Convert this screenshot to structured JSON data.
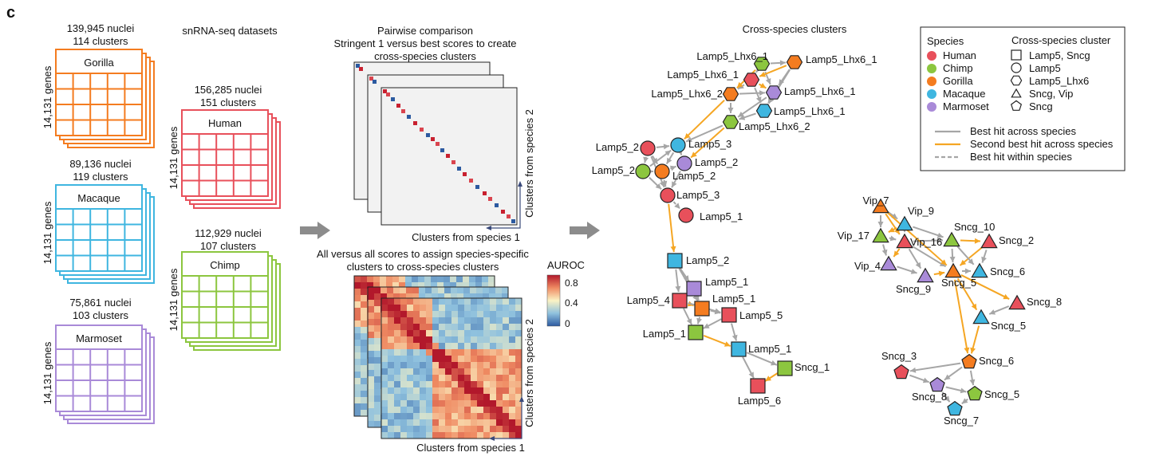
{
  "panel_label": "c",
  "datasets": {
    "heading": "snRNA-seq datasets",
    "species": [
      {
        "name": "Gorilla",
        "nuclei": "139,945 nuclei",
        "clusters": "114 clusters",
        "genes": "14,131 genes",
        "color": "#f47c20"
      },
      {
        "name": "Human",
        "nuclei": "156,285 nuclei",
        "clusters": "151 clusters",
        "genes": "14,131 genes",
        "color": "#e8505b"
      },
      {
        "name": "Macaque",
        "nuclei": "89,136 nuclei",
        "clusters": "119 clusters",
        "genes": "14,131 genes",
        "color": "#3fb6e0"
      },
      {
        "name": "Chimp",
        "nuclei": "112,929 nuclei",
        "clusters": "107 clusters",
        "genes": "14,131 genes",
        "color": "#8cc63f"
      },
      {
        "name": "Marmoset",
        "nuclei": "75,861 nuclei",
        "clusters": "103 clusters",
        "genes": "14,131 genes",
        "color": "#a98ad8"
      }
    ]
  },
  "pairwise": {
    "title": "Pairwise comparison",
    "subtitle_1": "Stringent 1 versus best scores to create",
    "subtitle_2": "cross-species clusters",
    "ylabel": "Clusters from species 2",
    "xlabel": "Clusters from species 1"
  },
  "allvsall": {
    "title_1": "All versus all scores to assign species-specific",
    "title_2": "clusters to cross-species clusters",
    "ylabel": "Clusters from species 2",
    "xlabel": "Clusters from species 1",
    "colorbar_title": "AUROC",
    "colorbar_ticks": [
      "0.8",
      "0.4",
      "0"
    ]
  },
  "network": {
    "title": "Cross-species clusters",
    "legend": {
      "species_header": "Species",
      "cluster_header": "Cross-species cluster",
      "species": [
        {
          "name": "Human",
          "color": "#e8505b"
        },
        {
          "name": "Chimp",
          "color": "#8cc63f"
        },
        {
          "name": "Gorilla",
          "color": "#f47c20"
        },
        {
          "name": "Macaque",
          "color": "#3fb6e0"
        },
        {
          "name": "Marmoset",
          "color": "#a98ad8"
        }
      ],
      "shapes": [
        {
          "name": "Lamp5, Sncg",
          "shape": "square"
        },
        {
          "name": "Lamp5",
          "shape": "circle"
        },
        {
          "name": "Lamp5_Lhx6",
          "shape": "hexagon"
        },
        {
          "name": "Sncg, Vip",
          "shape": "triangle"
        },
        {
          "name": "Sncg",
          "shape": "pentagon"
        }
      ],
      "edges": [
        {
          "name": "Best hit across species",
          "color": "#a6a6a6",
          "style": "solid"
        },
        {
          "name": "Second best hit across species",
          "color": "#f5a623",
          "style": "solid"
        },
        {
          "name": "Best hit within species",
          "color": "#a6a6a6",
          "style": "dashed"
        }
      ]
    },
    "nodes": [
      {
        "label": "Lamp5_Lhx6_1",
        "shape": "hexagon",
        "color": "#8cc63f"
      },
      {
        "label": "Lamp5_Lhx6_1",
        "shape": "hexagon",
        "color": "#f47c20"
      },
      {
        "label": "Lamp5_Lhx6_1",
        "shape": "hexagon",
        "color": "#e8505b"
      },
      {
        "label": "Lamp5_Lhx6_1",
        "shape": "hexagon",
        "color": "#a98ad8"
      },
      {
        "label": "Lamp5_Lhx6_2",
        "shape": "hexagon",
        "color": "#f47c20"
      },
      {
        "label": "Lamp5_Lhx6_1",
        "shape": "hexagon",
        "color": "#3fb6e0"
      },
      {
        "label": "Lamp5_Lhx6_2",
        "shape": "hexagon",
        "color": "#8cc63f"
      },
      {
        "label": "Lamp5_2",
        "shape": "circle",
        "color": "#e8505b"
      },
      {
        "label": "Lamp5_3",
        "shape": "circle",
        "color": "#3fb6e0"
      },
      {
        "label": "Lamp5_2",
        "shape": "circle",
        "color": "#8cc63f"
      },
      {
        "label": "Lamp5_2",
        "shape": "circle",
        "color": "#f47c20"
      },
      {
        "label": "Lamp5_2",
        "shape": "circle",
        "color": "#a98ad8"
      },
      {
        "label": "Lamp5_3",
        "shape": "circle",
        "color": "#e8505b"
      },
      {
        "label": "Lamp5_1",
        "shape": "circle",
        "color": "#e8505b"
      },
      {
        "label": "Lamp5_2",
        "shape": "square",
        "color": "#3fb6e0"
      },
      {
        "label": "Lamp5_1",
        "shape": "square",
        "color": "#a98ad8"
      },
      {
        "label": "Lamp5_4",
        "shape": "square",
        "color": "#e8505b"
      },
      {
        "label": "Lamp5_1",
        "shape": "square",
        "color": "#f47c20"
      },
      {
        "label": "Lamp5_5",
        "shape": "square",
        "color": "#e8505b"
      },
      {
        "label": "Lamp5_1",
        "shape": "square",
        "color": "#8cc63f"
      },
      {
        "label": "Lamp5_1",
        "shape": "square",
        "color": "#3fb6e0"
      },
      {
        "label": "Sncg_1",
        "shape": "square",
        "color": "#8cc63f"
      },
      {
        "label": "Lamp5_6",
        "shape": "square",
        "color": "#e8505b"
      },
      {
        "label": "Vip_7",
        "shape": "triangle",
        "color": "#f47c20"
      },
      {
        "label": "Vip_9",
        "shape": "triangle",
        "color": "#3fb6e0"
      },
      {
        "label": "Vip_17",
        "shape": "triangle",
        "color": "#8cc63f"
      },
      {
        "label": "Vip_16",
        "shape": "triangle",
        "color": "#e8505b"
      },
      {
        "label": "Vip_4",
        "shape": "triangle",
        "color": "#a98ad8"
      },
      {
        "label": "Sncg_10",
        "shape": "triangle",
        "color": "#8cc63f"
      },
      {
        "label": "Sncg_2",
        "shape": "triangle",
        "color": "#e8505b"
      },
      {
        "label": "Sncg_9",
        "shape": "triangle",
        "color": "#a98ad8"
      },
      {
        "label": "Sncg_5",
        "shape": "triangle",
        "color": "#f47c20"
      },
      {
        "label": "Sncg_6",
        "shape": "triangle",
        "color": "#3fb6e0"
      },
      {
        "label": "Sncg_8",
        "shape": "triangle",
        "color": "#e8505b"
      },
      {
        "label": "Sncg_5",
        "shape": "triangle",
        "color": "#3fb6e0"
      },
      {
        "label": "Sncg_6",
        "shape": "pentagon",
        "color": "#f47c20"
      },
      {
        "label": "Sncg_3",
        "shape": "pentagon",
        "color": "#e8505b"
      },
      {
        "label": "Sncg_8",
        "shape": "pentagon",
        "color": "#a98ad8"
      },
      {
        "label": "Sncg_5",
        "shape": "pentagon",
        "color": "#8cc63f"
      },
      {
        "label": "Sncg_7",
        "shape": "pentagon",
        "color": "#3fb6e0"
      }
    ]
  }
}
